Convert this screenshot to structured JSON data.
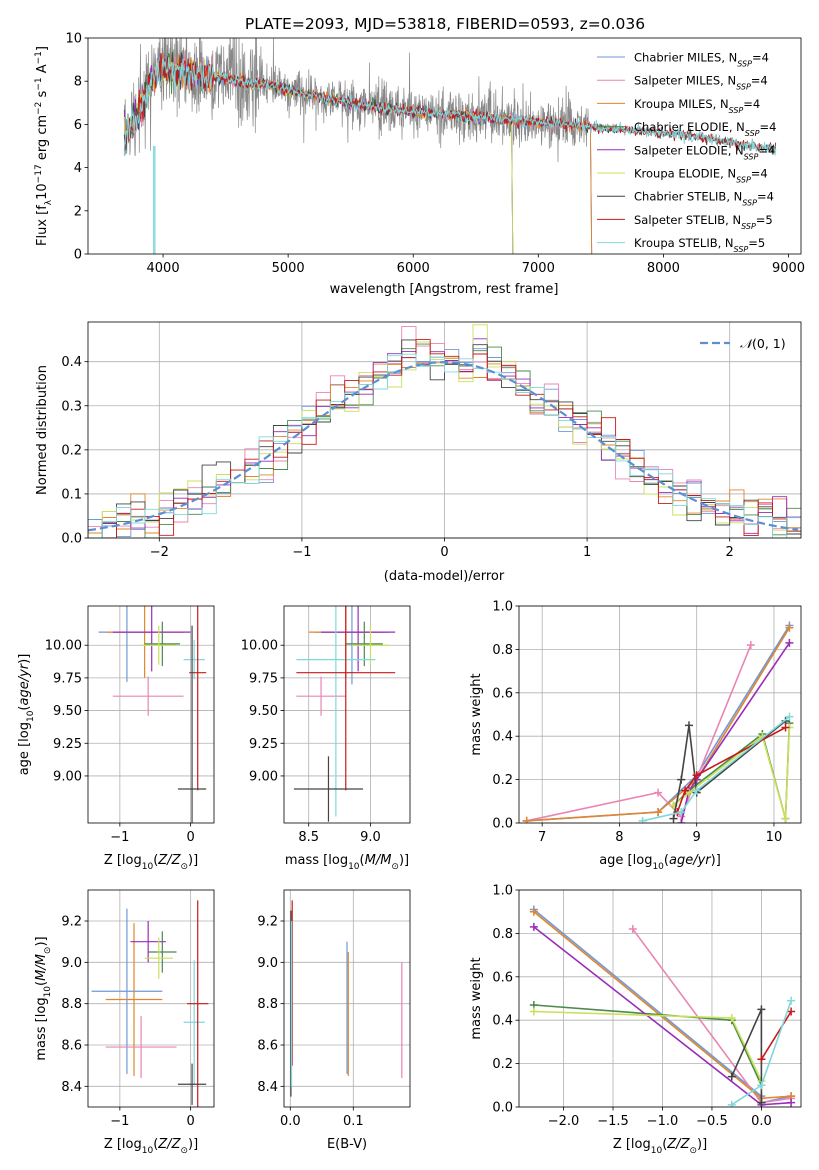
{
  "figure_title": "PLATE=2093, MJD=53818, FIBERID=0593, z=0.036",
  "colors": {
    "Chabrier MILES": "#6f99d8",
    "Salpeter MILES": "#e985b4",
    "Kroupa MILES": "#e0862e",
    "Chabrier ELODIE": "#4a8a4a",
    "Salpeter ELODIE": "#9a2db8",
    "Kroupa ELODIE": "#c9e05a",
    "Chabrier STELIB": "#444444",
    "Salpeter STELIB": "#c81a1a",
    "Kroupa STELIB": "#7fd8dc",
    "data": "#888888"
  },
  "chart_data": [
    {
      "id": "spectrum",
      "type": "line",
      "title": "PLATE=2093, MJD=53818, FIBERID=0593, z=0.036",
      "xlabel": "wavelength [Angstrom, rest frame]",
      "ylabel": "Flux [f_λ 10^-17 erg cm^-2 s^-1 A^-1]",
      "xlim": [
        3400,
        9100
      ],
      "ylim": [
        0,
        10
      ],
      "xticks": [
        4000,
        5000,
        6000,
        7000,
        8000,
        9000
      ],
      "yticks": [
        0,
        2,
        4,
        6,
        8,
        10
      ],
      "grid": false,
      "legend_position": "top-right",
      "data_series": {
        "name": "data",
        "x": [
          3700,
          3800,
          3900,
          4000,
          4100,
          4200,
          4300,
          4400,
          4500,
          4600,
          4700,
          4800,
          5000,
          5200,
          5400,
          5600,
          5800,
          6000,
          6200,
          6400,
          6600,
          6800,
          7000,
          7200,
          7400,
          7600,
          7800,
          8000,
          8200,
          8400,
          8600,
          8800
        ],
        "y": [
          5.6,
          6.5,
          8.0,
          8.6,
          8.5,
          8.4,
          8.3,
          8.2,
          8.1,
          8.0,
          7.9,
          7.9,
          7.6,
          7.3,
          7.1,
          6.9,
          6.7,
          6.6,
          6.5,
          6.4,
          6.3,
          6.2,
          6.1,
          6.0,
          5.9,
          5.8,
          5.7,
          5.6,
          5.5,
          5.3,
          5.1,
          4.9
        ]
      },
      "series": [
        {
          "name": "Chabrier MILES, N_SSP=4",
          "xmax": 7420
        },
        {
          "name": "Salpeter MILES, N_SSP=4",
          "xmax": 7420
        },
        {
          "name": "Kroupa MILES, N_SSP=4",
          "xmax": 7420
        },
        {
          "name": "Chabrier ELODIE, N_SSP=4",
          "xmax": 6790
        },
        {
          "name": "Salpeter ELODIE, N_SSP=4",
          "xmax": 6790
        },
        {
          "name": "Kroupa ELODIE, N_SSP=4",
          "xmax": 6790
        },
        {
          "name": "Chabrier STELIB, N_SSP=4",
          "xmax": 8900
        },
        {
          "name": "Salpeter STELIB, N_SSP=5",
          "xmax": 8900
        },
        {
          "name": "Kroupa STELIB, N_SSP=5",
          "xmax": 8900
        }
      ]
    },
    {
      "id": "residuals",
      "type": "line",
      "xlabel": "(data-model)/error",
      "ylabel": "Normed distribution",
      "xlim": [
        -2.5,
        2.5
      ],
      "ylim": [
        0,
        0.49
      ],
      "xticks": [
        -2,
        -1,
        0,
        1,
        2
      ],
      "yticks": [
        0.0,
        0.1,
        0.2,
        0.3,
        0.4
      ],
      "grid": true,
      "legend_position": "top-right",
      "reference": {
        "name": "N(0,1)",
        "mu": 0,
        "sigma": 1
      },
      "bin_edges": [
        -2.5,
        -2.4,
        -2.3,
        -2.2,
        -2.1,
        -2.0,
        -1.9,
        -1.8,
        -1.7,
        -1.6,
        -1.5,
        -1.4,
        -1.3,
        -1.2,
        -1.1,
        -1.0,
        -0.9,
        -0.8,
        -0.7,
        -0.6,
        -0.5,
        -0.4,
        -0.3,
        -0.2,
        -0.1,
        0.0,
        0.1,
        0.2,
        0.3,
        0.4,
        0.5,
        0.6,
        0.7,
        0.8,
        0.9,
        1.0,
        1.1,
        1.2,
        1.3,
        1.4,
        1.5,
        1.6,
        1.7,
        1.8,
        1.9,
        2.0,
        2.1,
        2.2,
        2.3,
        2.4,
        2.5
      ],
      "base_density": [
        0.032,
        0.035,
        0.038,
        0.045,
        0.05,
        0.062,
        0.085,
        0.09,
        0.1,
        0.12,
        0.14,
        0.16,
        0.18,
        0.21,
        0.24,
        0.26,
        0.28,
        0.3,
        0.32,
        0.35,
        0.37,
        0.39,
        0.42,
        0.41,
        0.4,
        0.4,
        0.41,
        0.43,
        0.39,
        0.38,
        0.34,
        0.33,
        0.3,
        0.28,
        0.26,
        0.23,
        0.21,
        0.19,
        0.17,
        0.14,
        0.12,
        0.1,
        0.085,
        0.07,
        0.06,
        0.055,
        0.05,
        0.04,
        0.035,
        0.03
      ]
    },
    {
      "id": "age-vs-Z",
      "type": "scatter",
      "xlabel": "Z [log10(Z/Z⊙)]",
      "ylabel": "age [log10(age/yr)]",
      "xlim": [
        -1.45,
        0.33
      ],
      "ylim": [
        8.64,
        10.3
      ],
      "xticks": [
        -1,
        0
      ],
      "yticks": [
        9.0,
        9.25,
        9.5,
        9.75,
        10.0
      ],
      "grid": true,
      "points": [
        {
          "series": "Chabrier MILES",
          "x": -0.9,
          "y": 10.1,
          "xerr": 0.4,
          "yerr": 0.38
        },
        {
          "series": "Kroupa MILES",
          "x": -0.65,
          "y": 10.1,
          "xerr": 0.55,
          "yerr": 0.35
        },
        {
          "series": "Salpeter ELODIE",
          "x": -0.55,
          "y": 10.1,
          "xerr": 0.55,
          "yerr": 0.3
        },
        {
          "series": "Chabrier ELODIE",
          "x": -0.4,
          "y": 10.01,
          "xerr": 0.25,
          "yerr": 0.17
        },
        {
          "series": "Kroupa ELODIE",
          "x": -0.45,
          "y": 10.0,
          "xerr": 0.25,
          "yerr": 0.15
        },
        {
          "series": "Salpeter MILES",
          "x": -0.6,
          "y": 9.61,
          "xerr": 0.5,
          "yerr": 0.15
        },
        {
          "series": "Kroupa STELIB",
          "x": 0.05,
          "y": 9.89,
          "xerr": 0.15,
          "yerr": 0.15
        },
        {
          "series": "Salpeter STELIB",
          "x": 0.1,
          "y": 9.79,
          "xerr": 0.12,
          "yerr": 0.9
        },
        {
          "series": "Chabrier STELIB",
          "x": 0.02,
          "y": 8.9,
          "xerr": 0.2,
          "yerr": 1.25
        }
      ]
    },
    {
      "id": "age-vs-mass",
      "type": "scatter",
      "xlabel": "mass [log10(M/M⊙)]",
      "ylabel": "",
      "xlim": [
        8.3,
        9.32
      ],
      "ylim": [
        8.64,
        10.3
      ],
      "xticks": [
        8.5,
        9.0
      ],
      "yticks": [
        9.0,
        9.25,
        9.5,
        9.75,
        10.0
      ],
      "grid": true,
      "points": [
        {
          "series": "Chabrier MILES",
          "x": 8.85,
          "y": 10.1,
          "xerr": 0.3,
          "yerr": 0.4
        },
        {
          "series": "Kroupa MILES",
          "x": 8.8,
          "y": 10.1,
          "xerr": 0.3,
          "yerr": 0.35
        },
        {
          "series": "Salpeter ELODIE",
          "x": 8.9,
          "y": 10.1,
          "xerr": 0.3,
          "yerr": 0.3
        },
        {
          "series": "Chabrier ELODIE",
          "x": 8.95,
          "y": 10.01,
          "xerr": 0.15,
          "yerr": 0.17
        },
        {
          "series": "Kroupa ELODIE",
          "x": 9.0,
          "y": 10.0,
          "xerr": 0.15,
          "yerr": 0.15
        },
        {
          "series": "Salpeter MILES",
          "x": 8.6,
          "y": 9.61,
          "xerr": 0.2,
          "yerr": 0.15
        },
        {
          "series": "Kroupa STELIB",
          "x": 8.72,
          "y": 9.89,
          "xerr": 0.32,
          "yerr": 1.2
        },
        {
          "series": "Salpeter STELIB",
          "x": 8.8,
          "y": 9.79,
          "xerr": 0.4,
          "yerr": 0.9
        },
        {
          "series": "Chabrier STELIB",
          "x": 8.66,
          "y": 8.9,
          "xerr": 0.28,
          "yerr": 0.25
        }
      ]
    },
    {
      "id": "weight-vs-age",
      "type": "line",
      "xlabel": "age [log10(age/yr)]",
      "ylabel": "mass weight",
      "xlim": [
        6.7,
        10.35
      ],
      "ylim": [
        0,
        1.0
      ],
      "xticks": [
        7,
        8,
        9,
        10
      ],
      "yticks": [
        0.0,
        0.2,
        0.4,
        0.6,
        0.8,
        1.0
      ],
      "grid": true,
      "lines": [
        {
          "series": "Chabrier MILES",
          "x": [
            6.8,
            8.5,
            9.0,
            10.2
          ],
          "y": [
            0.01,
            0.05,
            0.22,
            0.91
          ]
        },
        {
          "series": "Salpeter MILES",
          "x": [
            6.8,
            8.5,
            8.8,
            9.7
          ],
          "y": [
            0.01,
            0.14,
            0.03,
            0.82
          ]
        },
        {
          "series": "Kroupa MILES",
          "x": [
            6.8,
            8.5,
            9.0,
            10.2
          ],
          "y": [
            0.01,
            0.05,
            0.2,
            0.9
          ]
        },
        {
          "series": "Chabrier ELODIE",
          "x": [
            8.7,
            8.9,
            9.85,
            10.15,
            10.2
          ],
          "y": [
            0.08,
            0.15,
            0.41,
            0.02,
            0.46
          ]
        },
        {
          "series": "Salpeter ELODIE",
          "x": [
            8.8,
            8.9,
            9.0,
            10.2
          ],
          "y": [
            0.0,
            0.15,
            0.2,
            0.83
          ]
        },
        {
          "series": "Kroupa ELODIE",
          "x": [
            8.7,
            8.9,
            9.85,
            10.15,
            10.2
          ],
          "y": [
            0.08,
            0.14,
            0.4,
            0.02,
            0.44
          ]
        },
        {
          "series": "Chabrier STELIB",
          "x": [
            8.7,
            8.8,
            8.9,
            9.0,
            10.15
          ],
          "y": [
            0.02,
            0.2,
            0.45,
            0.14,
            0.47
          ]
        },
        {
          "series": "Salpeter STELIB",
          "x": [
            8.75,
            8.85,
            9.0,
            10.15
          ],
          "y": [
            0.05,
            0.15,
            0.22,
            0.44
          ]
        },
        {
          "series": "Kroupa STELIB",
          "x": [
            8.3,
            8.8,
            9.0,
            10.2
          ],
          "y": [
            0.01,
            0.05,
            0.15,
            0.49
          ]
        }
      ]
    },
    {
      "id": "mass-vs-Z",
      "type": "scatter",
      "xlabel": "Z [log10(Z/Z⊙)]",
      "ylabel": "mass [log10(M/M⊙)]",
      "xlim": [
        -1.45,
        0.33
      ],
      "ylim": [
        8.3,
        9.35
      ],
      "xticks": [
        -1,
        0
      ],
      "yticks": [
        8.4,
        8.6,
        8.8,
        9.0,
        9.2
      ],
      "grid": true,
      "points": [
        {
          "series": "Chabrier MILES",
          "x": -0.9,
          "y": 8.86,
          "xerr": 0.5,
          "yerr": 0.4
        },
        {
          "series": "Kroupa MILES",
          "x": -0.8,
          "y": 8.82,
          "xerr": 0.4,
          "yerr": 0.37
        },
        {
          "series": "Salpeter ELODIE",
          "x": -0.6,
          "y": 9.1,
          "xerr": 0.25,
          "yerr": 0.1
        },
        {
          "series": "Chabrier ELODIE",
          "x": -0.4,
          "y": 9.05,
          "xerr": 0.2,
          "yerr": 0.1
        },
        {
          "series": "Kroupa ELODIE",
          "x": -0.45,
          "y": 9.02,
          "xerr": 0.2,
          "yerr": 0.1
        },
        {
          "series": "Salpeter MILES",
          "x": -0.7,
          "y": 8.59,
          "xerr": 0.5,
          "yerr": 0.15
        },
        {
          "series": "Kroupa STELIB",
          "x": 0.05,
          "y": 8.71,
          "xerr": 0.15,
          "yerr": 0.3
        },
        {
          "series": "Salpeter STELIB",
          "x": 0.1,
          "y": 8.8,
          "xerr": 0.15,
          "yerr": 0.5
        },
        {
          "series": "Chabrier STELIB",
          "x": 0.02,
          "y": 8.41,
          "xerr": 0.2,
          "yerr": 0.1
        }
      ]
    },
    {
      "id": "mass-vs-EBV",
      "type": "scatter",
      "xlabel": "E(B-V)",
      "ylabel": "",
      "xlim": [
        -0.01,
        0.19
      ],
      "ylim": [
        8.3,
        9.35
      ],
      "xticks": [
        0.0,
        0.1
      ],
      "yticks": [
        8.4,
        8.6,
        8.8,
        9.0,
        9.2
      ],
      "grid": true,
      "points": [
        {
          "series": "Chabrier MILES",
          "x": 0.09,
          "y": 8.78,
          "xerr": 0,
          "yerr": 0.32
        },
        {
          "series": "Kroupa MILES",
          "x": 0.092,
          "y": 8.75,
          "xerr": 0,
          "yerr": 0.3
        },
        {
          "series": "Salpeter MILES",
          "x": 0.177,
          "y": 8.72,
          "xerr": 0,
          "yerr": 0.28
        },
        {
          "series": "Chabrier STELIB",
          "x": 0.001,
          "y": 8.8,
          "xerr": 0,
          "yerr": 0.45
        },
        {
          "series": "Salpeter STELIB",
          "x": 0.003,
          "y": 8.9,
          "xerr": 0,
          "yerr": 0.4
        },
        {
          "series": "Kroupa STELIB",
          "x": 0.002,
          "y": 8.8,
          "xerr": 0,
          "yerr": 0.4
        }
      ]
    },
    {
      "id": "weight-vs-Z",
      "type": "line",
      "xlabel": "Z [log10(Z/Z⊙)]",
      "ylabel": "mass weight",
      "xlim": [
        -2.45,
        0.4
      ],
      "ylim": [
        0,
        1.0
      ],
      "xticks": [
        -2.0,
        -1.5,
        -1.0,
        -0.5,
        0.0
      ],
      "yticks": [
        0.0,
        0.2,
        0.4,
        0.6,
        0.8,
        1.0
      ],
      "grid": true,
      "lines": [
        {
          "series": "Chabrier MILES",
          "x": [
            -2.3,
            0.0,
            0.0,
            0.3
          ],
          "y": [
            0.91,
            0.05,
            0.02,
            0.05
          ]
        },
        {
          "series": "Salpeter MILES",
          "x": [
            -1.3,
            0.0,
            0.3
          ],
          "y": [
            0.82,
            0.02,
            0.04
          ]
        },
        {
          "series": "Kroupa MILES",
          "x": [
            -2.3,
            0.0,
            0.3
          ],
          "y": [
            0.9,
            0.04,
            0.05
          ]
        },
        {
          "series": "Chabrier ELODIE",
          "x": [
            -2.3,
            -0.3,
            0.0
          ],
          "y": [
            0.47,
            0.4,
            0.1
          ]
        },
        {
          "series": "Salpeter ELODIE",
          "x": [
            -2.3,
            0.0,
            0.3
          ],
          "y": [
            0.83,
            0.01,
            0.02
          ]
        },
        {
          "series": "Kroupa ELODIE",
          "x": [
            -2.3,
            -0.3,
            0.0
          ],
          "y": [
            0.44,
            0.41,
            0.12
          ]
        },
        {
          "series": "Chabrier STELIB",
          "x": [
            -0.3,
            0.0,
            0.0
          ],
          "y": [
            0.14,
            0.45,
            0.02
          ]
        },
        {
          "series": "Salpeter STELIB",
          "x": [
            0.0,
            0.3
          ],
          "y": [
            0.22,
            0.44
          ]
        },
        {
          "series": "Kroupa STELIB",
          "x": [
            -0.3,
            0.0,
            0.3
          ],
          "y": [
            0.01,
            0.1,
            0.49
          ]
        }
      ]
    }
  ]
}
